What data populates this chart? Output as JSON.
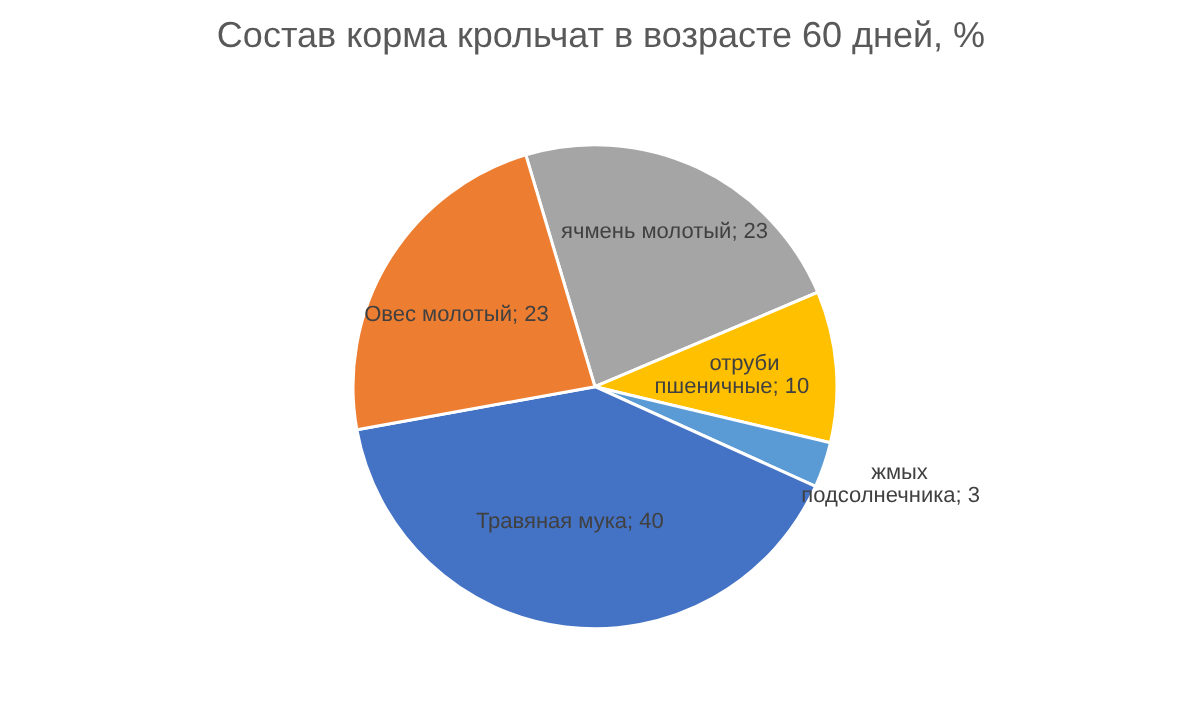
{
  "chart_data": {
    "type": "pie",
    "title": "Состав корма крольчат в возрасте 60 дней, %",
    "categories": [
      "ячмень молотый",
      "отруби пшеничные",
      "жмых подсолнечника",
      "Травяная мука",
      "Овес молотый"
    ],
    "values": [
      23,
      10,
      3,
      40,
      23
    ],
    "colors": [
      "#a5a5a5",
      "#ffc000",
      "#5b9bd5",
      "#4472c4",
      "#ed7d31"
    ],
    "value_labels": [
      "; 23",
      "; 10",
      "; 3",
      "; 40",
      "; 23"
    ]
  }
}
